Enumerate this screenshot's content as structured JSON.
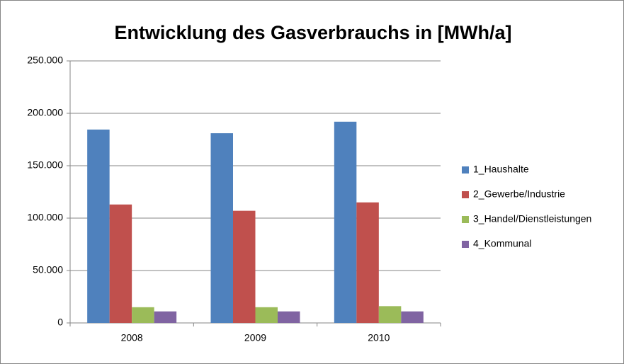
{
  "chart_data": {
    "type": "bar",
    "title": "Entwicklung des Gasverbrauchs in [MWh/a]",
    "categories": [
      "2008",
      "2009",
      "2010"
    ],
    "series": [
      {
        "name": "1_Haushalte",
        "color": "#4F81BD",
        "values": [
          184500,
          181000,
          192000
        ]
      },
      {
        "name": "2_Gewerbe/Industrie",
        "color": "#C0504D",
        "values": [
          113000,
          107000,
          115000
        ]
      },
      {
        "name": "3_Handel/Dienstleistungen",
        "color": "#9BBB59",
        "values": [
          15000,
          15000,
          16000
        ]
      },
      {
        "name": "4_Kommunal",
        "color": "#8064A2",
        "values": [
          11000,
          11000,
          11000
        ]
      }
    ],
    "ylim": [
      0,
      250000
    ],
    "yticks": [
      0,
      {
        "value": 50000,
        "label": "50.000"
      },
      {
        "value": 100000,
        "label": "100.000"
      },
      {
        "value": 150000,
        "label": "150.000"
      },
      {
        "value": 200000,
        "label": "200.000"
      },
      {
        "value": 250000,
        "label": "250.000"
      }
    ],
    "grid": true,
    "legend": "right"
  }
}
